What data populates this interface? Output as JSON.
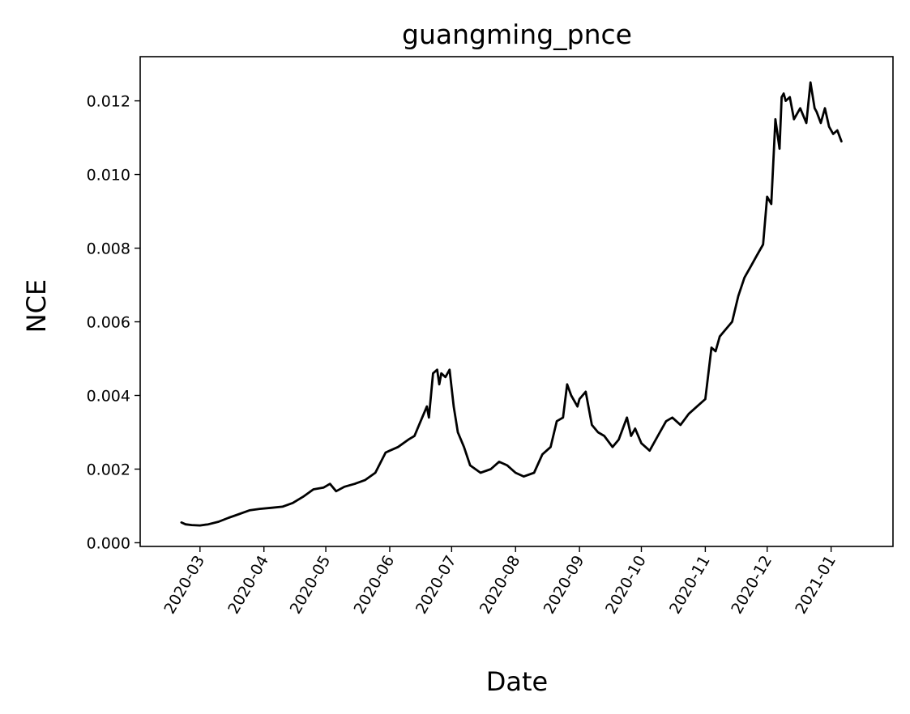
{
  "chart_data": {
    "type": "line",
    "title": "guangming_pnce",
    "xlabel": "Date",
    "ylabel": "NCE",
    "x_range": [
      "2020-02-01",
      "2021-01-31"
    ],
    "ylim": [
      -0.0001,
      0.0132
    ],
    "grid": false,
    "legend": "none",
    "line_color": "#000000",
    "y_ticks": [
      "0.000",
      "0.002",
      "0.004",
      "0.006",
      "0.008",
      "0.010",
      "0.012"
    ],
    "x_ticks": [
      "2020-03",
      "2020-04",
      "2020-05",
      "2020-06",
      "2020-07",
      "2020-08",
      "2020-09",
      "2020-10",
      "2020-11",
      "2020-12",
      "2021-01"
    ],
    "series": [
      {
        "x": [
          "2020-02-21",
          "2020-02-23",
          "2020-02-26",
          "2020-03-01",
          "2020-03-05",
          "2020-03-10",
          "2020-03-15",
          "2020-03-20",
          "2020-03-25",
          "2020-03-30",
          "2020-04-05",
          "2020-04-10",
          "2020-04-15",
          "2020-04-20",
          "2020-04-25",
          "2020-04-30",
          "2020-05-03",
          "2020-05-06",
          "2020-05-10",
          "2020-05-15",
          "2020-05-20",
          "2020-05-25",
          "2020-05-30",
          "2020-06-01",
          "2020-06-05",
          "2020-06-10",
          "2020-06-13",
          "2020-06-16",
          "2020-06-19",
          "2020-06-20",
          "2020-06-22",
          "2020-06-24",
          "2020-06-25",
          "2020-06-26",
          "2020-06-28",
          "2020-06-30",
          "2020-07-02",
          "2020-07-04",
          "2020-07-07",
          "2020-07-10",
          "2020-07-15",
          "2020-07-20",
          "2020-07-24",
          "2020-07-28",
          "2020-08-01",
          "2020-08-05",
          "2020-08-10",
          "2020-08-14",
          "2020-08-18",
          "2020-08-21",
          "2020-08-24",
          "2020-08-26",
          "2020-08-28",
          "2020-08-31",
          "2020-09-01",
          "2020-09-04",
          "2020-09-07",
          "2020-09-10",
          "2020-09-13",
          "2020-09-17",
          "2020-09-20",
          "2020-09-24",
          "2020-09-26",
          "2020-09-28",
          "2020-10-01",
          "2020-10-05",
          "2020-10-09",
          "2020-10-13",
          "2020-10-16",
          "2020-10-20",
          "2020-10-24",
          "2020-10-28",
          "2020-11-01",
          "2020-11-04",
          "2020-11-06",
          "2020-11-08",
          "2020-11-11",
          "2020-11-14",
          "2020-11-17",
          "2020-11-20",
          "2020-11-23",
          "2020-11-26",
          "2020-11-29",
          "2020-12-01",
          "2020-12-03",
          "2020-12-05",
          "2020-12-07",
          "2020-12-08",
          "2020-12-09",
          "2020-12-10",
          "2020-12-12",
          "2020-12-14",
          "2020-12-17",
          "2020-12-20",
          "2020-12-22",
          "2020-12-24",
          "2020-12-25",
          "2020-12-27",
          "2020-12-29",
          "2020-12-31",
          "2021-01-02",
          "2021-01-04",
          "2021-01-06"
        ],
        "y": [
          0.00055,
          0.0005,
          0.00048,
          0.00047,
          0.0005,
          0.00057,
          0.00068,
          0.00078,
          0.00088,
          0.00092,
          0.00095,
          0.00098,
          0.00108,
          0.00125,
          0.00145,
          0.0015,
          0.0016,
          0.0014,
          0.00152,
          0.0016,
          0.0017,
          0.0019,
          0.00245,
          0.0025,
          0.0026,
          0.0028,
          0.0029,
          0.0033,
          0.0037,
          0.0034,
          0.0046,
          0.0047,
          0.0043,
          0.0046,
          0.0045,
          0.0047,
          0.0037,
          0.003,
          0.0026,
          0.0021,
          0.0019,
          0.002,
          0.0022,
          0.0021,
          0.0019,
          0.0018,
          0.0019,
          0.0024,
          0.0026,
          0.0033,
          0.0034,
          0.0043,
          0.004,
          0.0037,
          0.0039,
          0.0041,
          0.0032,
          0.003,
          0.0029,
          0.0026,
          0.0028,
          0.0034,
          0.0029,
          0.0031,
          0.0027,
          0.0025,
          0.0029,
          0.0033,
          0.0034,
          0.0032,
          0.0035,
          0.0037,
          0.0039,
          0.0053,
          0.0052,
          0.0056,
          0.0058,
          0.006,
          0.0067,
          0.0072,
          0.0075,
          0.0078,
          0.0081,
          0.0094,
          0.0092,
          0.0115,
          0.0107,
          0.0121,
          0.0122,
          0.012,
          0.0121,
          0.0115,
          0.0118,
          0.0114,
          0.0125,
          0.0118,
          0.0117,
          0.0114,
          0.0118,
          0.0113,
          0.0111,
          0.0112,
          0.0109
        ]
      }
    ]
  }
}
